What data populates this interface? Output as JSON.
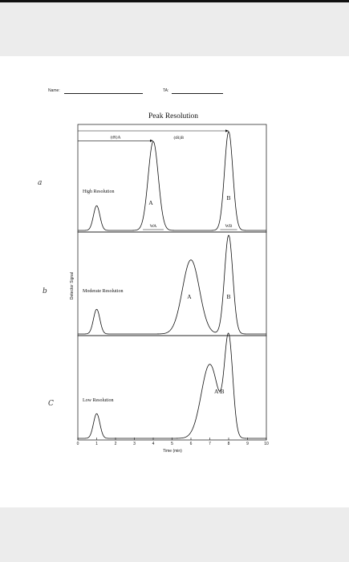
{
  "header": {
    "name_label": "Name:",
    "ta_label": "TA:"
  },
  "margin_marks": [
    "a",
    "b",
    "C"
  ],
  "chart_data": {
    "type": "line",
    "title": "Peak Resolution",
    "xlabel": "Time (min)",
    "ylabel": "Detector Signal",
    "xlim": [
      0,
      10
    ],
    "xticks": [
      0,
      1,
      2,
      3,
      4,
      5,
      6,
      7,
      8,
      9,
      10
    ],
    "panels": [
      {
        "label": "High Resolution",
        "peaks": [
          {
            "name": "",
            "t": 1.0,
            "height": 0.25,
            "sigma": 0.17
          },
          {
            "name": "A",
            "t": 4.0,
            "height": 0.9,
            "sigma": 0.27
          },
          {
            "name": "B",
            "t": 8.0,
            "height": 1.0,
            "sigma": 0.22
          }
        ],
        "annotations": {
          "retention_A": "(tR)A",
          "retention_B": "(tR)B",
          "width_A": "WA",
          "width_B": "WB"
        }
      },
      {
        "label": "Moderate Resolution",
        "peaks": [
          {
            "name": "",
            "t": 1.0,
            "height": 0.25,
            "sigma": 0.17
          },
          {
            "name": "A",
            "t": 6.0,
            "height": 0.75,
            "sigma": 0.45
          },
          {
            "name": "B",
            "t": 8.0,
            "height": 1.0,
            "sigma": 0.22
          }
        ]
      },
      {
        "label": "Low Resolution",
        "peaks": [
          {
            "name": "",
            "t": 1.0,
            "height": 0.25,
            "sigma": 0.17
          },
          {
            "name": "A",
            "t": 7.0,
            "height": 0.75,
            "sigma": 0.45
          },
          {
            "name": "B",
            "t": 8.0,
            "height": 1.0,
            "sigma": 0.22
          }
        ],
        "peak_label": "A\\B"
      }
    ]
  }
}
